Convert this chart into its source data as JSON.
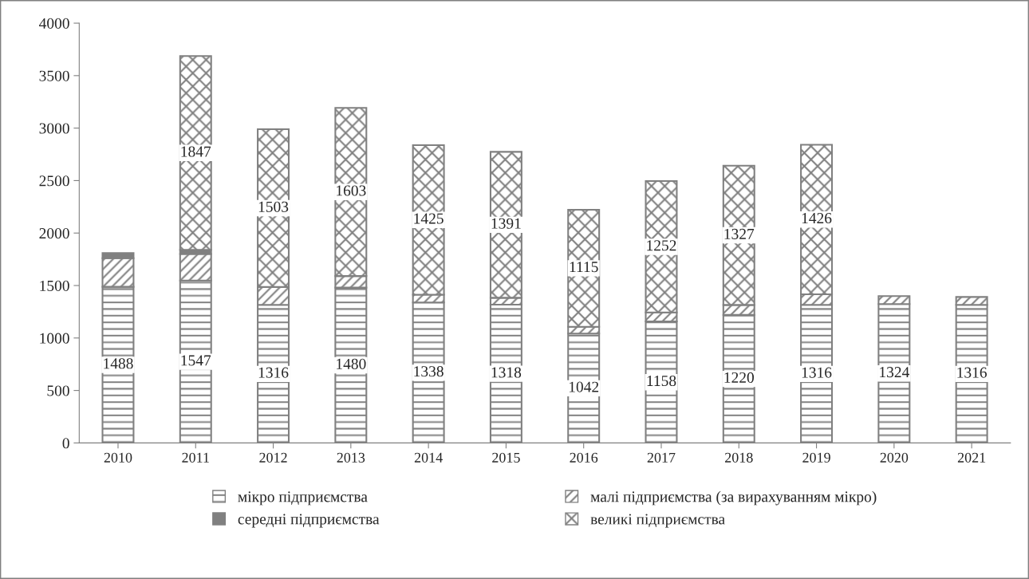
{
  "chart_data": {
    "type": "bar",
    "stacked": true,
    "categories": [
      "2010",
      "2011",
      "2012",
      "2013",
      "2014",
      "2015",
      "2016",
      "2017",
      "2018",
      "2019",
      "2020",
      "2021"
    ],
    "series": [
      {
        "name": "мікро підприємства",
        "color": "#808080",
        "values": [
          1488,
          1547,
          1316,
          1480,
          1338,
          1318,
          1042,
          1158,
          1220,
          1316,
          1324,
          1316
        ],
        "value_labels": [
          "1488",
          "1547",
          "1316",
          "1480",
          "1338",
          "1318",
          "1042",
          "1158",
          "1220",
          "1316",
          "1324",
          "1316"
        ]
      },
      {
        "name": "малі підприємства (за вирахуванням мікро)",
        "color": "#808080",
        "values": [
          272,
          253,
          170,
          110,
          75,
          65,
          65,
          85,
          95,
          100,
          75,
          75
        ]
      },
      {
        "name": "середні підприємства",
        "color": "#808080",
        "values": [
          50,
          40,
          null,
          null,
          null,
          null,
          null,
          null,
          null,
          null,
          null,
          null
        ]
      },
      {
        "name": "великі підприємства",
        "color": "#808080",
        "values": [
          null,
          1847,
          1503,
          1603,
          1425,
          1391,
          1115,
          1252,
          1327,
          1426,
          null,
          null
        ],
        "value_labels": [
          null,
          "1847",
          "1503",
          "1603",
          "1425",
          "1391",
          "1115",
          "1252",
          "1327",
          "1426",
          null,
          null
        ]
      }
    ],
    "ylim": [
      0,
      4000
    ],
    "yticks": [
      0,
      500,
      1000,
      1500,
      2000,
      2500,
      3000,
      3500,
      4000
    ],
    "grid": false,
    "legend": "bottom"
  }
}
